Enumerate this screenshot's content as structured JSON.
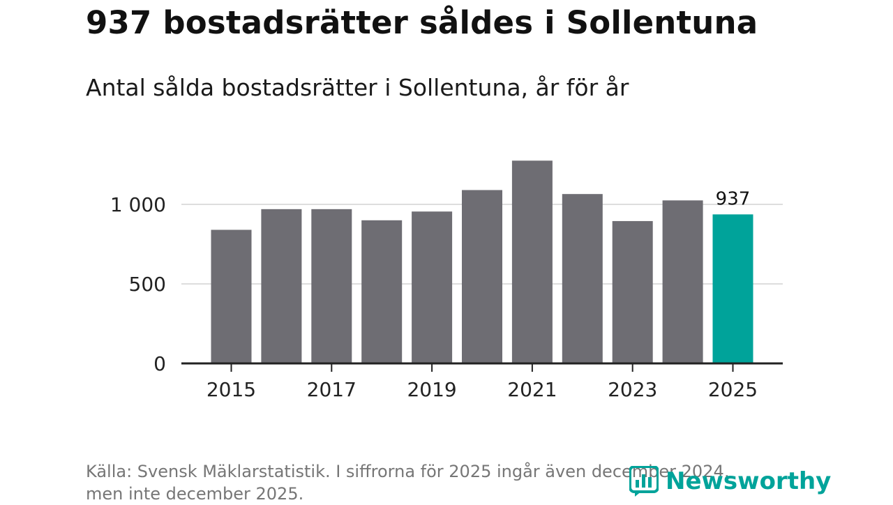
{
  "title": "937 bostadsrätter såldes i Sollentuna",
  "subtitle": "Antal sålda bostadsrätter i Sollentuna, år för år",
  "source": {
    "line1": "Källa: Svensk Mäklarstatistik. I siffrorna för 2025 ingår även december 2024,",
    "line2": "men inte december 2025."
  },
  "logo": {
    "text": "Newsworthy",
    "icon": "bar-chart-logo-icon"
  },
  "colors": {
    "bar": "#6e6d73",
    "highlight": "#00a39a",
    "grid": "#dddddd",
    "axis": "#222222"
  },
  "chart_data": {
    "type": "bar",
    "categories": [
      "2015",
      "2016",
      "2017",
      "2018",
      "2019",
      "2020",
      "2021",
      "2022",
      "2023",
      "2024",
      "2025"
    ],
    "values": [
      840,
      970,
      970,
      900,
      955,
      1090,
      1275,
      1065,
      895,
      1025,
      937
    ],
    "highlight_index": 10,
    "data_labels": [
      {
        "index": 10,
        "text": "937"
      }
    ],
    "x_tick_labels": [
      "2015",
      "2017",
      "2019",
      "2021",
      "2023",
      "2025"
    ],
    "y_ticks": [
      {
        "value": 0,
        "label": "0"
      },
      {
        "value": 500,
        "label": "500"
      },
      {
        "value": 1000,
        "label": "1 000"
      }
    ],
    "ylim": [
      0,
      1300
    ],
    "xlabel": "",
    "ylabel": "",
    "grid": true,
    "legend": "none"
  }
}
